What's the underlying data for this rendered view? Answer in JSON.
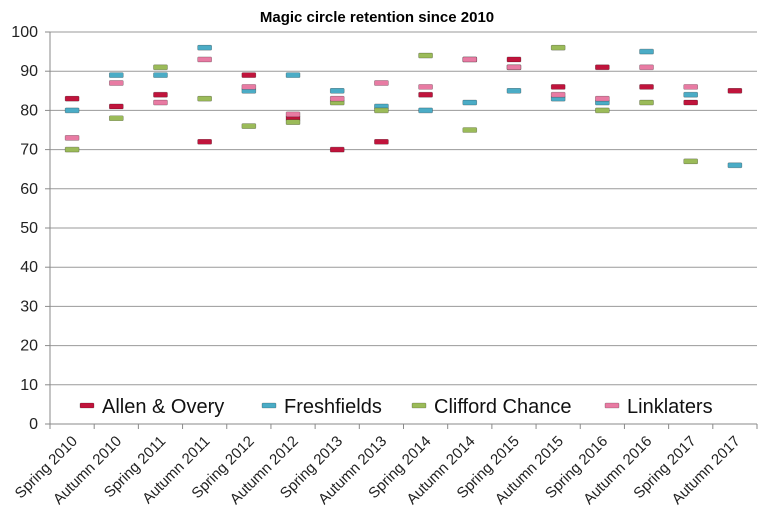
{
  "chart_data": {
    "type": "scatter",
    "title": "Magic circle retention since 2010",
    "xlabel": "",
    "ylabel": "",
    "ylim": [
      0,
      100
    ],
    "yticks": [
      0,
      10,
      20,
      30,
      40,
      50,
      60,
      70,
      80,
      90,
      100
    ],
    "grid": true,
    "legend_position": "bottom",
    "marker": "dash",
    "categories": [
      "Spring 2010",
      "Autumn 2010",
      "Spring 2011",
      "Autumn 2011",
      "Spring 2012",
      "Autumn 2012",
      "Spring 2013",
      "Autumn 2013",
      "Spring 2014",
      "Autumn 2014",
      "Spring 2015",
      "Autumn 2015",
      "Spring 2016",
      "Autumn 2016",
      "Spring 2017",
      "Autumn 2017"
    ],
    "series": [
      {
        "name": "Allen & Overy",
        "color": "#c0143c",
        "values": [
          83,
          81,
          84,
          72,
          89,
          78,
          70,
          72,
          84,
          93,
          93,
          86,
          91,
          86,
          82,
          85
        ]
      },
      {
        "name": "Freshfields",
        "color": "#4bacc6",
        "values": [
          80,
          89,
          89,
          96,
          85,
          89,
          85,
          81,
          80,
          82,
          85,
          83,
          82,
          95,
          84,
          66
        ]
      },
      {
        "name": "Clifford Chance",
        "color": "#9bbb59",
        "values": [
          70,
          78,
          91,
          83,
          76,
          77,
          82,
          80,
          94,
          75,
          91,
          96,
          80,
          82,
          67,
          null
        ]
      },
      {
        "name": "Linklaters",
        "color": "#e87ba3",
        "values": [
          73,
          87,
          82,
          93,
          86,
          79,
          83,
          87,
          86,
          93,
          91,
          84,
          83,
          91,
          86,
          null
        ]
      }
    ]
  }
}
